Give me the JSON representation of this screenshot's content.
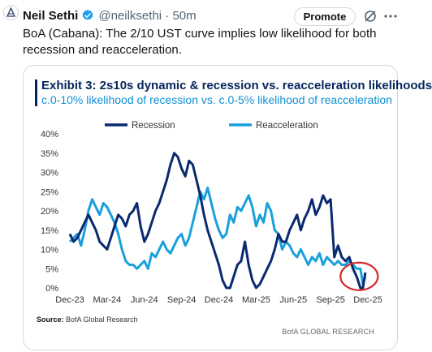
{
  "tweet": {
    "author_name": "Neil Sethi",
    "handle_time": "@neilksethi · 50m",
    "promote_label": "Promote",
    "text": "BoA (Cabana): The 2/10 UST curve implies low likelihood for both recession and reacceleration."
  },
  "card": {
    "title": "Exhibit 3: 2s10s dynamic & recession vs. reacceleration likelihoods",
    "subtitle": "c.0-10% likelihood of recession vs. c.0-5% likelihood of reacceleration",
    "source_label": "Source:",
    "source_text": "BofA Global Research",
    "credit": "BofA GLOBAL RESEARCH"
  },
  "icons": {
    "avatar": "logo-avatar",
    "verified": "verified-badge-icon",
    "grok": "grok-icon",
    "more": "more-icon"
  },
  "colors": {
    "recession": "#0b2a6e",
    "reacceleration": "#1aa0dc",
    "title": "#06245c",
    "highlight_circle": "#d62b2b"
  },
  "chart_data": {
    "type": "line",
    "title": "",
    "xlabel": "",
    "ylabel": "",
    "ylim": [
      0,
      40
    ],
    "y_ticks": [
      "0%",
      "5%",
      "10%",
      "15%",
      "20%",
      "25%",
      "30%",
      "35%",
      "40%"
    ],
    "x_ticks": [
      "Dec-23",
      "Mar-24",
      "Jun-24",
      "Sep-24",
      "Dec-24",
      "Mar-25",
      "Jun-25",
      "Sep-25",
      "Dec-25"
    ],
    "x_tick_months": [
      0,
      3,
      6,
      9,
      12,
      15,
      18,
      21,
      24
    ],
    "legend_position": "top",
    "series": [
      {
        "name": "Recession",
        "x_months": [
          0,
          0.3,
          0.6,
          0.9,
          1.2,
          1.5,
          1.8,
          2.1,
          2.4,
          2.7,
          3.0,
          3.3,
          3.6,
          3.9,
          4.2,
          4.5,
          4.8,
          5.1,
          5.4,
          5.7,
          6.0,
          6.3,
          6.6,
          6.9,
          7.2,
          7.5,
          7.8,
          8.1,
          8.4,
          8.7,
          9.0,
          9.3,
          9.6,
          9.9,
          10.2,
          10.5,
          10.8,
          11.1,
          11.4,
          11.7,
          12.0,
          12.3,
          12.6,
          12.9,
          13.2,
          13.5,
          13.8,
          14.1,
          14.4,
          14.7,
          15.0,
          15.3,
          15.6,
          15.9,
          16.2,
          16.5,
          16.8,
          17.1,
          17.4,
          17.7,
          18.0,
          18.3,
          18.6,
          18.9,
          19.2,
          19.5,
          19.8,
          20.1,
          20.4,
          20.7,
          21.0,
          21.3,
          21.6,
          21.9,
          22.2,
          22.5,
          22.8,
          23.1,
          23.4,
          23.6,
          23.8
        ],
        "values": [
          14,
          12,
          13,
          15,
          17,
          19,
          17,
          15,
          12,
          11,
          10,
          13,
          16,
          19,
          18,
          16,
          19,
          20,
          22,
          16,
          12,
          14,
          17,
          20,
          22,
          25,
          28,
          32,
          35,
          34,
          31,
          29,
          33,
          32,
          28,
          24,
          19,
          15,
          12,
          9,
          6,
          2,
          0,
          0,
          3,
          6,
          7,
          12,
          6,
          2,
          0,
          1,
          3,
          5,
          7,
          10,
          14,
          12,
          12,
          15,
          17,
          19,
          15,
          18,
          20,
          23,
          19,
          21,
          24,
          22,
          23,
          8,
          11,
          8,
          7,
          8,
          5,
          3,
          0,
          0,
          4
        ]
      },
      {
        "name": "Reacceleration",
        "x_months": [
          0,
          0.3,
          0.6,
          0.9,
          1.2,
          1.5,
          1.8,
          2.1,
          2.4,
          2.7,
          3.0,
          3.3,
          3.6,
          3.9,
          4.2,
          4.5,
          4.8,
          5.1,
          5.4,
          5.7,
          6.0,
          6.3,
          6.6,
          6.9,
          7.2,
          7.5,
          7.8,
          8.1,
          8.4,
          8.7,
          9.0,
          9.3,
          9.6,
          9.9,
          10.2,
          10.5,
          10.8,
          11.1,
          11.4,
          11.7,
          12.0,
          12.3,
          12.6,
          12.9,
          13.2,
          13.5,
          13.8,
          14.1,
          14.4,
          14.7,
          15.0,
          15.3,
          15.6,
          15.9,
          16.2,
          16.5,
          16.8,
          17.1,
          17.4,
          17.7,
          18.0,
          18.3,
          18.6,
          18.9,
          19.2,
          19.5,
          19.8,
          20.1,
          20.4,
          20.7,
          21.0,
          21.3,
          21.6,
          21.9,
          22.2,
          22.5,
          22.8,
          23.1,
          23.4,
          23.6,
          23.8
        ],
        "values": [
          12,
          13,
          14,
          11,
          15,
          20,
          23,
          21,
          19,
          22,
          21,
          19,
          17,
          14,
          10,
          7,
          6,
          6,
          5,
          6,
          7,
          5,
          9,
          8,
          10,
          12,
          10,
          9,
          11,
          13,
          14,
          11,
          13,
          17,
          21,
          25,
          23,
          26,
          22,
          18,
          15,
          13,
          14,
          19,
          17,
          21,
          20,
          22,
          24,
          21,
          16,
          19,
          17,
          22,
          20,
          15,
          14,
          10,
          12,
          11,
          9,
          8,
          10,
          8,
          6,
          8,
          7,
          9,
          6,
          8,
          7,
          6,
          7,
          6,
          6,
          7,
          6,
          5,
          5,
          1,
          3
        ]
      }
    ]
  }
}
